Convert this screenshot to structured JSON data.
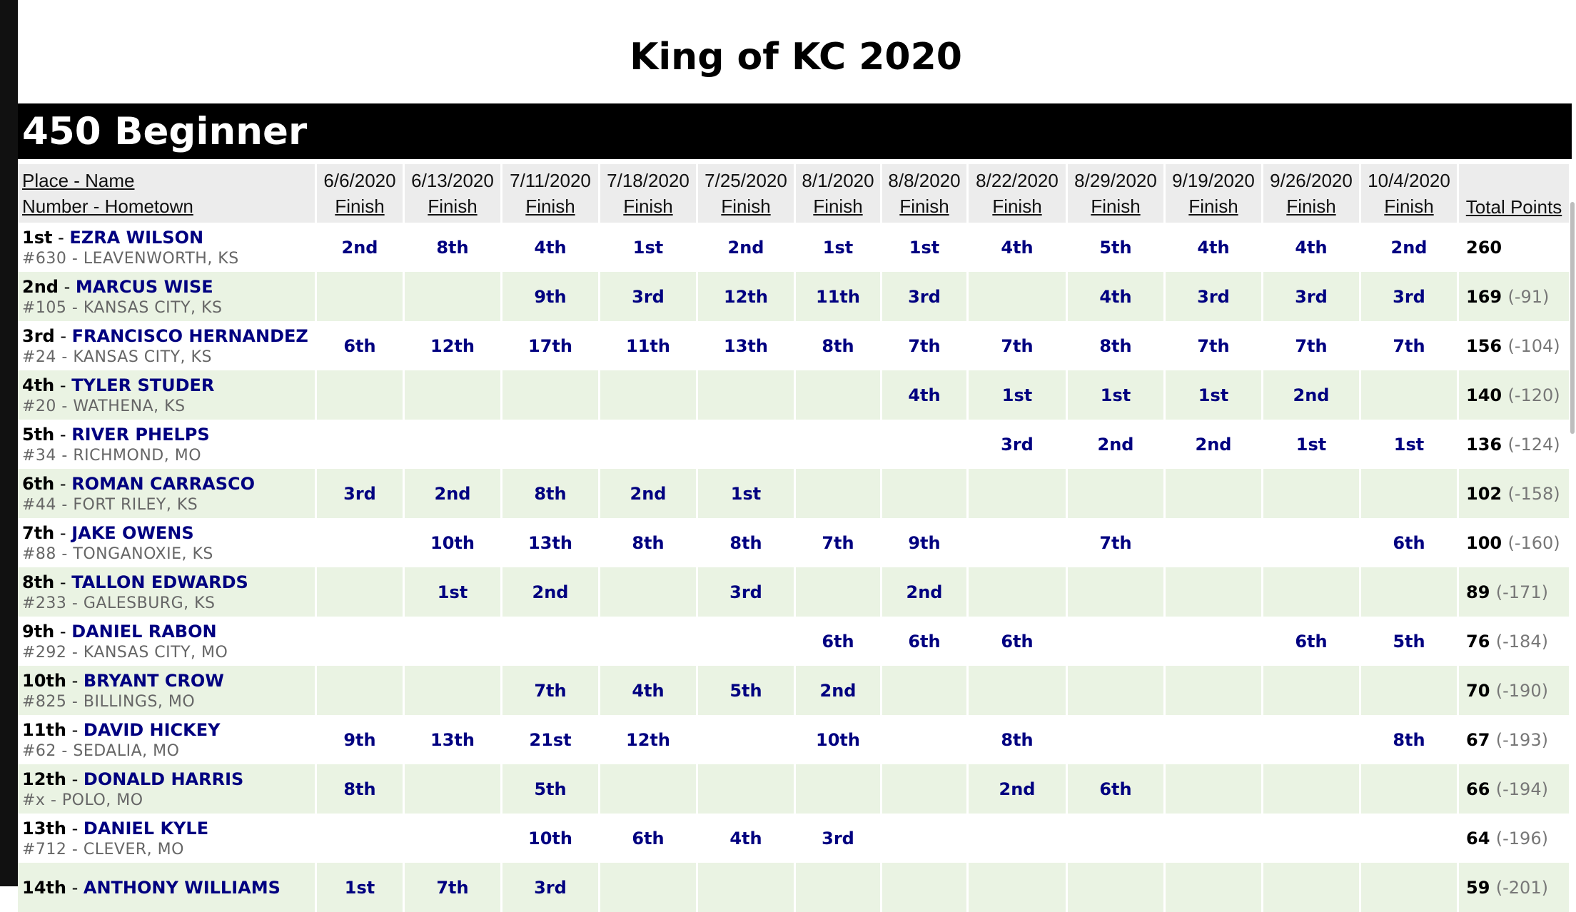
{
  "page_title": "King of KC 2020",
  "class_title": "450 Beginner",
  "header": {
    "name_line1": "Place - Name",
    "name_line2": "Number - Hometown",
    "finish_label": "Finish",
    "total_label": "Total Points",
    "dates": [
      "6/6/2020",
      "6/13/2020",
      "7/11/2020",
      "7/18/2020",
      "7/25/2020",
      "8/1/2020",
      "8/8/2020",
      "8/22/2020",
      "8/29/2020",
      "9/19/2020",
      "9/26/2020",
      "10/4/2020"
    ]
  },
  "riders": [
    {
      "place": "1st",
      "name": "EZRA WILSON",
      "number": "#630",
      "hometown": "LEAVENWORTH, KS",
      "finishes": [
        "2nd",
        "8th",
        "4th",
        "1st",
        "2nd",
        "1st",
        "1st",
        "4th",
        "5th",
        "4th",
        "4th",
        "2nd"
      ],
      "total": "260",
      "gap": ""
    },
    {
      "place": "2nd",
      "name": "MARCUS WISE",
      "number": "#105",
      "hometown": "KANSAS CITY, KS",
      "finishes": [
        "",
        "",
        "9th",
        "3rd",
        "12th",
        "11th",
        "3rd",
        "",
        "4th",
        "3rd",
        "3rd",
        "3rd"
      ],
      "total": "169",
      "gap": "(-91)"
    },
    {
      "place": "3rd",
      "name": "FRANCISCO HERNANDEZ",
      "number": "#24",
      "hometown": "KANSAS CITY, KS",
      "finishes": [
        "6th",
        "12th",
        "17th",
        "11th",
        "13th",
        "8th",
        "7th",
        "7th",
        "8th",
        "7th",
        "7th",
        "7th"
      ],
      "total": "156",
      "gap": "(-104)"
    },
    {
      "place": "4th",
      "name": "TYLER STUDER",
      "number": "#20",
      "hometown": "WATHENA, KS",
      "finishes": [
        "",
        "",
        "",
        "",
        "",
        "",
        "4th",
        "1st",
        "1st",
        "1st",
        "2nd",
        ""
      ],
      "total": "140",
      "gap": "(-120)"
    },
    {
      "place": "5th",
      "name": "RIVER PHELPS",
      "number": "#34",
      "hometown": "RICHMOND, MO",
      "finishes": [
        "",
        "",
        "",
        "",
        "",
        "",
        "",
        "3rd",
        "2nd",
        "2nd",
        "1st",
        "1st"
      ],
      "total": "136",
      "gap": "(-124)"
    },
    {
      "place": "6th",
      "name": "ROMAN CARRASCO",
      "number": "#44",
      "hometown": "FORT RILEY, KS",
      "finishes": [
        "3rd",
        "2nd",
        "8th",
        "2nd",
        "1st",
        "",
        "",
        "",
        "",
        "",
        "",
        ""
      ],
      "total": "102",
      "gap": "(-158)"
    },
    {
      "place": "7th",
      "name": "JAKE OWENS",
      "number": "#88",
      "hometown": "TONGANOXIE, KS",
      "finishes": [
        "",
        "10th",
        "13th",
        "8th",
        "8th",
        "7th",
        "9th",
        "",
        "7th",
        "",
        "",
        "6th"
      ],
      "total": "100",
      "gap": "(-160)"
    },
    {
      "place": "8th",
      "name": "TALLON EDWARDS",
      "number": "#233",
      "hometown": "GALESBURG, KS",
      "finishes": [
        "",
        "1st",
        "2nd",
        "",
        "3rd",
        "",
        "2nd",
        "",
        "",
        "",
        "",
        ""
      ],
      "total": "89",
      "gap": "(-171)"
    },
    {
      "place": "9th",
      "name": "DANIEL RABON",
      "number": "#292",
      "hometown": "KANSAS CITY, MO",
      "finishes": [
        "",
        "",
        "",
        "",
        "",
        "6th",
        "6th",
        "6th",
        "",
        "",
        "6th",
        "5th"
      ],
      "total": "76",
      "gap": "(-184)"
    },
    {
      "place": "10th",
      "name": "BRYANT CROW",
      "number": "#825",
      "hometown": "BILLINGS, MO",
      "finishes": [
        "",
        "",
        "7th",
        "4th",
        "5th",
        "2nd",
        "",
        "",
        "",
        "",
        "",
        ""
      ],
      "total": "70",
      "gap": "(-190)"
    },
    {
      "place": "11th",
      "name": "DAVID HICKEY",
      "number": "#62",
      "hometown": "SEDALIA, MO",
      "finishes": [
        "9th",
        "13th",
        "21st",
        "12th",
        "",
        "10th",
        "",
        "8th",
        "",
        "",
        "",
        "8th"
      ],
      "total": "67",
      "gap": "(-193)"
    },
    {
      "place": "12th",
      "name": "DONALD HARRIS",
      "number": "#x",
      "hometown": "POLO, MO",
      "finishes": [
        "8th",
        "",
        "5th",
        "",
        "",
        "",
        "",
        "2nd",
        "6th",
        "",
        "",
        ""
      ],
      "total": "66",
      "gap": "(-194)"
    },
    {
      "place": "13th",
      "name": "DANIEL KYLE",
      "number": "#712",
      "hometown": "CLEVER, MO",
      "finishes": [
        "",
        "",
        "10th",
        "6th",
        "4th",
        "3rd",
        "",
        "",
        "",
        "",
        "",
        ""
      ],
      "total": "64",
      "gap": "(-196)"
    },
    {
      "place": "14th",
      "name": "ANTHONY WILLIAMS",
      "number": "",
      "hometown": "",
      "finishes": [
        "1st",
        "7th",
        "3rd",
        "",
        "",
        "",
        "",
        "",
        "",
        "",
        "",
        ""
      ],
      "total": "59",
      "gap": "(-201)"
    }
  ]
}
